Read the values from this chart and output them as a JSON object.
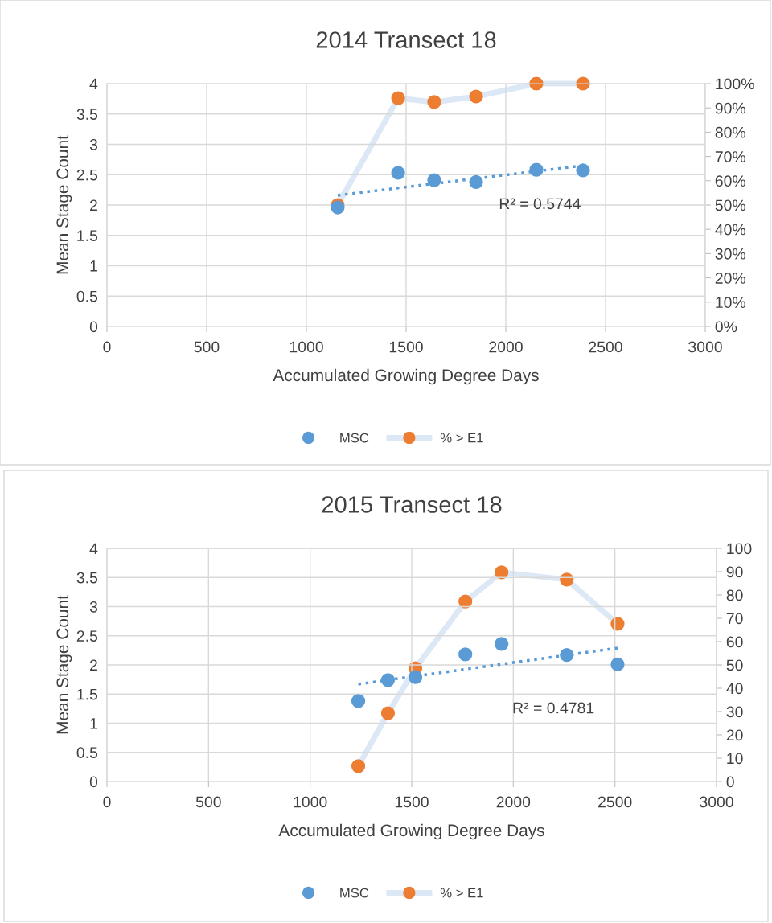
{
  "chart_data": [
    {
      "type": "scatter",
      "title": "2014 Transect 18",
      "xlabel": "Accumulated Growing Degree Days",
      "ylabel": "Mean Stage Count",
      "xlim": [
        0,
        3000
      ],
      "xticks": [
        0,
        500,
        1000,
        1500,
        2000,
        2500,
        3000
      ],
      "ylim": [
        0,
        4
      ],
      "yticks": [
        0,
        0.5,
        1,
        1.5,
        2,
        2.5,
        3,
        3.5,
        4
      ],
      "y2lim": [
        0,
        100
      ],
      "y2ticks": [
        {
          "value": 0,
          "label": "0%"
        },
        {
          "value": 10,
          "label": "10%"
        },
        {
          "value": 20,
          "label": "20%"
        },
        {
          "value": 30,
          "label": "30%"
        },
        {
          "value": 40,
          "label": "40%"
        },
        {
          "value": 50,
          "label": "50%"
        },
        {
          "value": 60,
          "label": "60%"
        },
        {
          "value": 70,
          "label": "70%"
        },
        {
          "value": 80,
          "label": "80%"
        },
        {
          "value": 90,
          "label": "90%"
        },
        {
          "value": 100,
          "label": "100%"
        }
      ],
      "grid": true,
      "legend": "bottom",
      "annotations": [
        "R² = 0.5744"
      ],
      "series": [
        {
          "name": "MSC",
          "color": "#5b9bd5",
          "marker": "circle",
          "x": [
            1157,
            1460,
            1641,
            1851,
            2153,
            2387
          ],
          "values": [
            1.96,
            2.53,
            2.41,
            2.38,
            2.58,
            2.57
          ]
        },
        {
          "type": "line",
          "color": "#5b9bd5",
          "line_style": "dotted",
          "marker": "none",
          "x": [
            1157,
            2387
          ],
          "values": [
            2.16,
            2.65
          ]
        },
        {
          "name": "% > E1",
          "type": "line",
          "axis": "y2",
          "color": "#dce8f5",
          "colors": [
            "#ed7d31",
            "#ed7d31",
            "#ed7d31",
            "#ed7d31",
            "#ed7d31",
            "#ed7d31"
          ],
          "marker": "circle",
          "line_style": "solid",
          "x": [
            1157,
            1460,
            1641,
            1851,
            2153,
            2387
          ],
          "values": [
            50,
            94,
            92.4,
            94.7,
            100,
            100
          ]
        }
      ]
    },
    {
      "type": "scatter",
      "title": "2015 Transect 18",
      "xlabel": "Accumulated Growing Degree Days",
      "ylabel": "Mean Stage Count",
      "xlim": [
        0,
        3000
      ],
      "xticks": [
        0,
        500,
        1000,
        1500,
        2000,
        2500,
        3000
      ],
      "ylim": [
        0,
        4
      ],
      "yticks": [
        0,
        0.5,
        1,
        1.5,
        2,
        2.5,
        3,
        3.5,
        4
      ],
      "y2lim": [
        0,
        100
      ],
      "y2ticks": [
        0,
        10,
        20,
        30,
        40,
        50,
        60,
        70,
        80,
        90,
        100
      ],
      "grid": true,
      "legend": "bottom",
      "annotations": [
        "R² = 0.4781"
      ],
      "series": [
        {
          "name": "MSC",
          "color": "#5b9bd5",
          "marker": "circle",
          "x": [
            1237,
            1383,
            1518,
            1764,
            1942,
            2263,
            2513
          ],
          "values": [
            1.38,
            1.74,
            1.79,
            2.18,
            2.36,
            2.17,
            2.01
          ]
        },
        {
          "type": "line",
          "color": "#5b9bd5",
          "line_style": "dotted",
          "marker": "none",
          "x": [
            1237,
            2513
          ],
          "values": [
            1.67,
            2.29
          ]
        },
        {
          "name": "% > E1",
          "type": "line",
          "axis": "y2",
          "color": "#dce8f5",
          "colors": [
            "#ed7d31",
            "#ed7d31",
            "#ed7d31",
            "#ed7d31",
            "#ed7d31",
            "#ed7d31",
            "#ed7d31"
          ],
          "marker": "circle",
          "line_style": "solid",
          "x": [
            1237,
            1383,
            1518,
            1764,
            1942,
            2263,
            2513
          ],
          "values": [
            6.6,
            29.3,
            48.6,
            77.2,
            89.7,
            86.6,
            67.6
          ]
        }
      ]
    }
  ]
}
